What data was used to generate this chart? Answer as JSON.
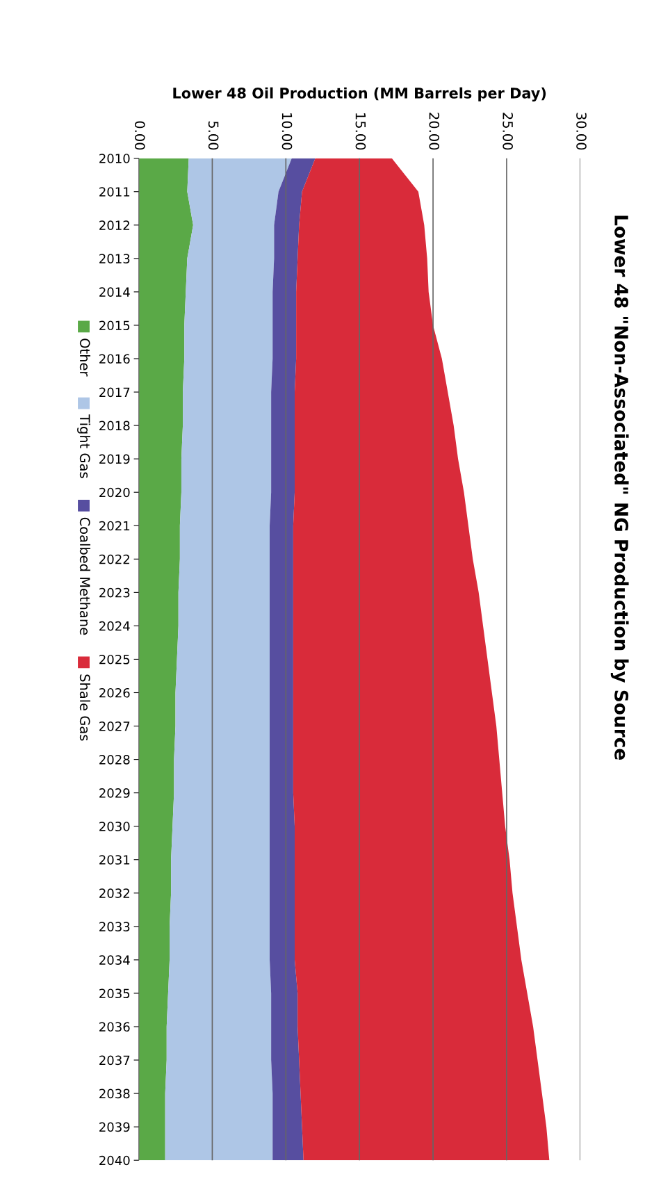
{
  "chart_data": {
    "type": "area",
    "orientation": "horizontal",
    "stacked": true,
    "title": "Lower 48 \"Non-Associated\" NG Production by Source",
    "xlabel": "Lower 48 Oil Production (MM Barrels per Day)",
    "categories": [
      "2010",
      "2011",
      "2012",
      "2013",
      "2014",
      "2015",
      "2016",
      "2017",
      "2018",
      "2019",
      "2020",
      "2021",
      "2022",
      "2023",
      "2024",
      "2025",
      "2026",
      "2027",
      "2028",
      "2029",
      "2030",
      "2031",
      "2032",
      "2033",
      "2034",
      "2035",
      "2036",
      "2037",
      "2038",
      "2039",
      "2040"
    ],
    "series": [
      {
        "name": "Other",
        "color": "#5aa947",
        "values": [
          3.4,
          3.3,
          3.7,
          3.3,
          3.2,
          3.1,
          3.1,
          3.0,
          3.0,
          2.9,
          2.9,
          2.8,
          2.8,
          2.7,
          2.7,
          2.6,
          2.5,
          2.5,
          2.4,
          2.4,
          2.3,
          2.2,
          2.2,
          2.1,
          2.1,
          2.0,
          1.9,
          1.9,
          1.8,
          1.8,
          1.8
        ]
      },
      {
        "name": "Tight Gas",
        "color": "#aec6e6",
        "values": [
          7.0,
          6.2,
          5.5,
          5.9,
          5.9,
          6.0,
          6.0,
          6.0,
          6.0,
          6.1,
          6.1,
          6.1,
          6.1,
          6.2,
          6.2,
          6.3,
          6.4,
          6.4,
          6.5,
          6.5,
          6.6,
          6.7,
          6.7,
          6.8,
          6.8,
          7.0,
          7.1,
          7.1,
          7.3,
          7.3,
          7.3
        ]
      },
      {
        "name": "Coalbed Methane",
        "color": "#574ea0",
        "values": [
          1.6,
          1.6,
          1.7,
          1.6,
          1.6,
          1.6,
          1.6,
          1.6,
          1.6,
          1.6,
          1.6,
          1.6,
          1.6,
          1.6,
          1.6,
          1.6,
          1.6,
          1.6,
          1.6,
          1.6,
          1.7,
          1.7,
          1.7,
          1.7,
          1.7,
          1.8,
          1.8,
          1.9,
          1.9,
          2.0,
          2.1
        ]
      },
      {
        "name": "Shale Gas",
        "color": "#d92b3a",
        "values": [
          5.2,
          7.9,
          8.5,
          8.8,
          9.0,
          9.3,
          9.9,
          10.4,
          10.8,
          11.1,
          11.5,
          11.9,
          12.2,
          12.6,
          12.9,
          13.2,
          13.5,
          13.8,
          14.0,
          14.2,
          14.3,
          14.6,
          14.8,
          15.1,
          15.4,
          15.6,
          16.0,
          16.2,
          16.4,
          16.6,
          16.7
        ]
      }
    ],
    "xlim": [
      0,
      30
    ],
    "xticks": [
      {
        "value": 0,
        "label": "0.00"
      },
      {
        "value": 5,
        "label": "5.00"
      },
      {
        "value": 10,
        "label": "10.00"
      },
      {
        "value": 15,
        "label": "15.00"
      },
      {
        "value": 20,
        "label": "20.00"
      },
      {
        "value": 25,
        "label": "25.00"
      },
      {
        "value": 30,
        "label": "30.00"
      }
    ],
    "grid": "x",
    "legend": "left"
  }
}
